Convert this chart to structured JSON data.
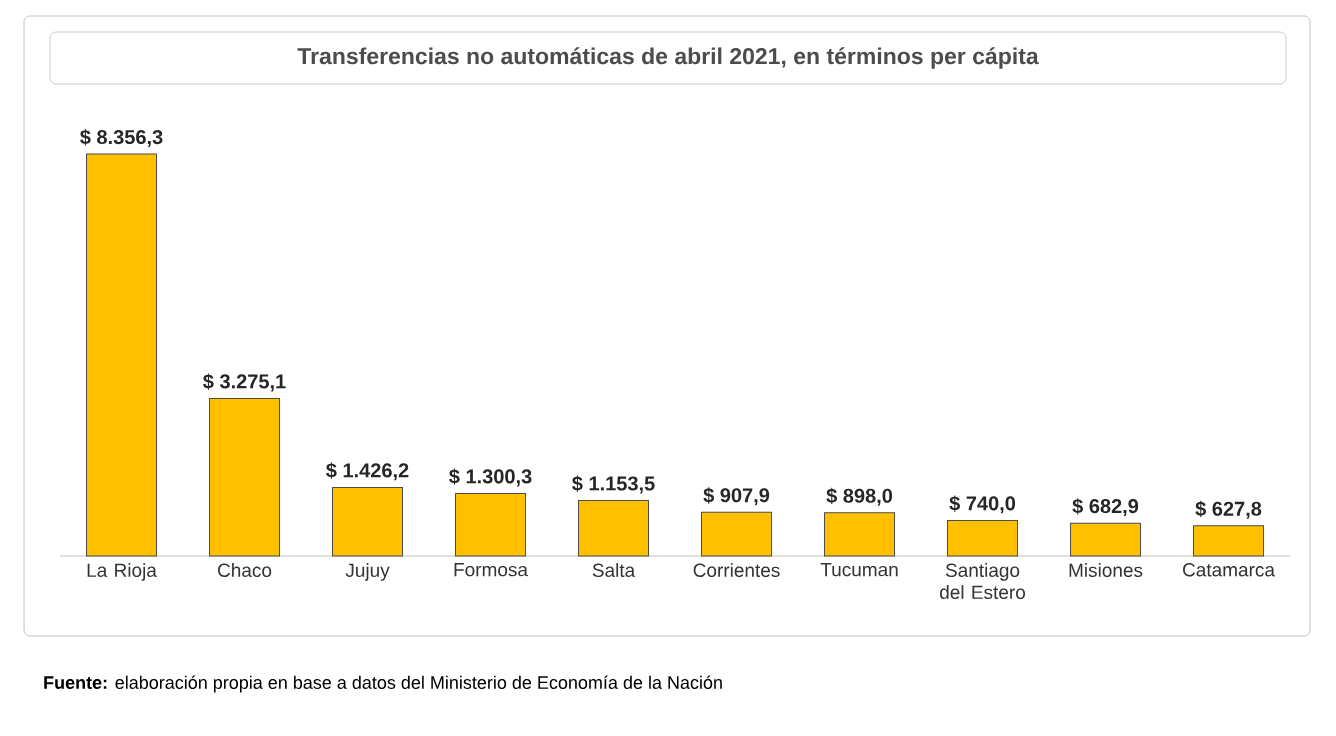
{
  "chart_data": {
    "type": "bar",
    "title": "Transferencias no automáticas de abril 2021, en términos per cápita",
    "categories": [
      "La Rioja",
      "Chaco",
      "Jujuy",
      "Formosa",
      "Salta",
      "Corrientes",
      "Tucuman",
      "Santiago del Estero",
      "Misiones",
      "Catamarca"
    ],
    "values": [
      8356.3,
      3275.1,
      1426.2,
      1300.3,
      1153.5,
      907.9,
      898.0,
      740.0,
      682.9,
      627.8
    ],
    "color": "#ffc000",
    "value_labels": [
      "$ 8.356,3",
      "$ 3.275,1",
      "$ 1.426,2",
      "$ 1.300,3",
      "$ 1.153,5",
      "$ 907,9",
      "$ 898,0",
      "$ 740,0",
      "$ 682,9",
      "$ 627,8"
    ],
    "annotations": [
      "**Fuente:** elaboración propia en base a datos del Ministerio de Economía de la Nación"
    ]
  }
}
